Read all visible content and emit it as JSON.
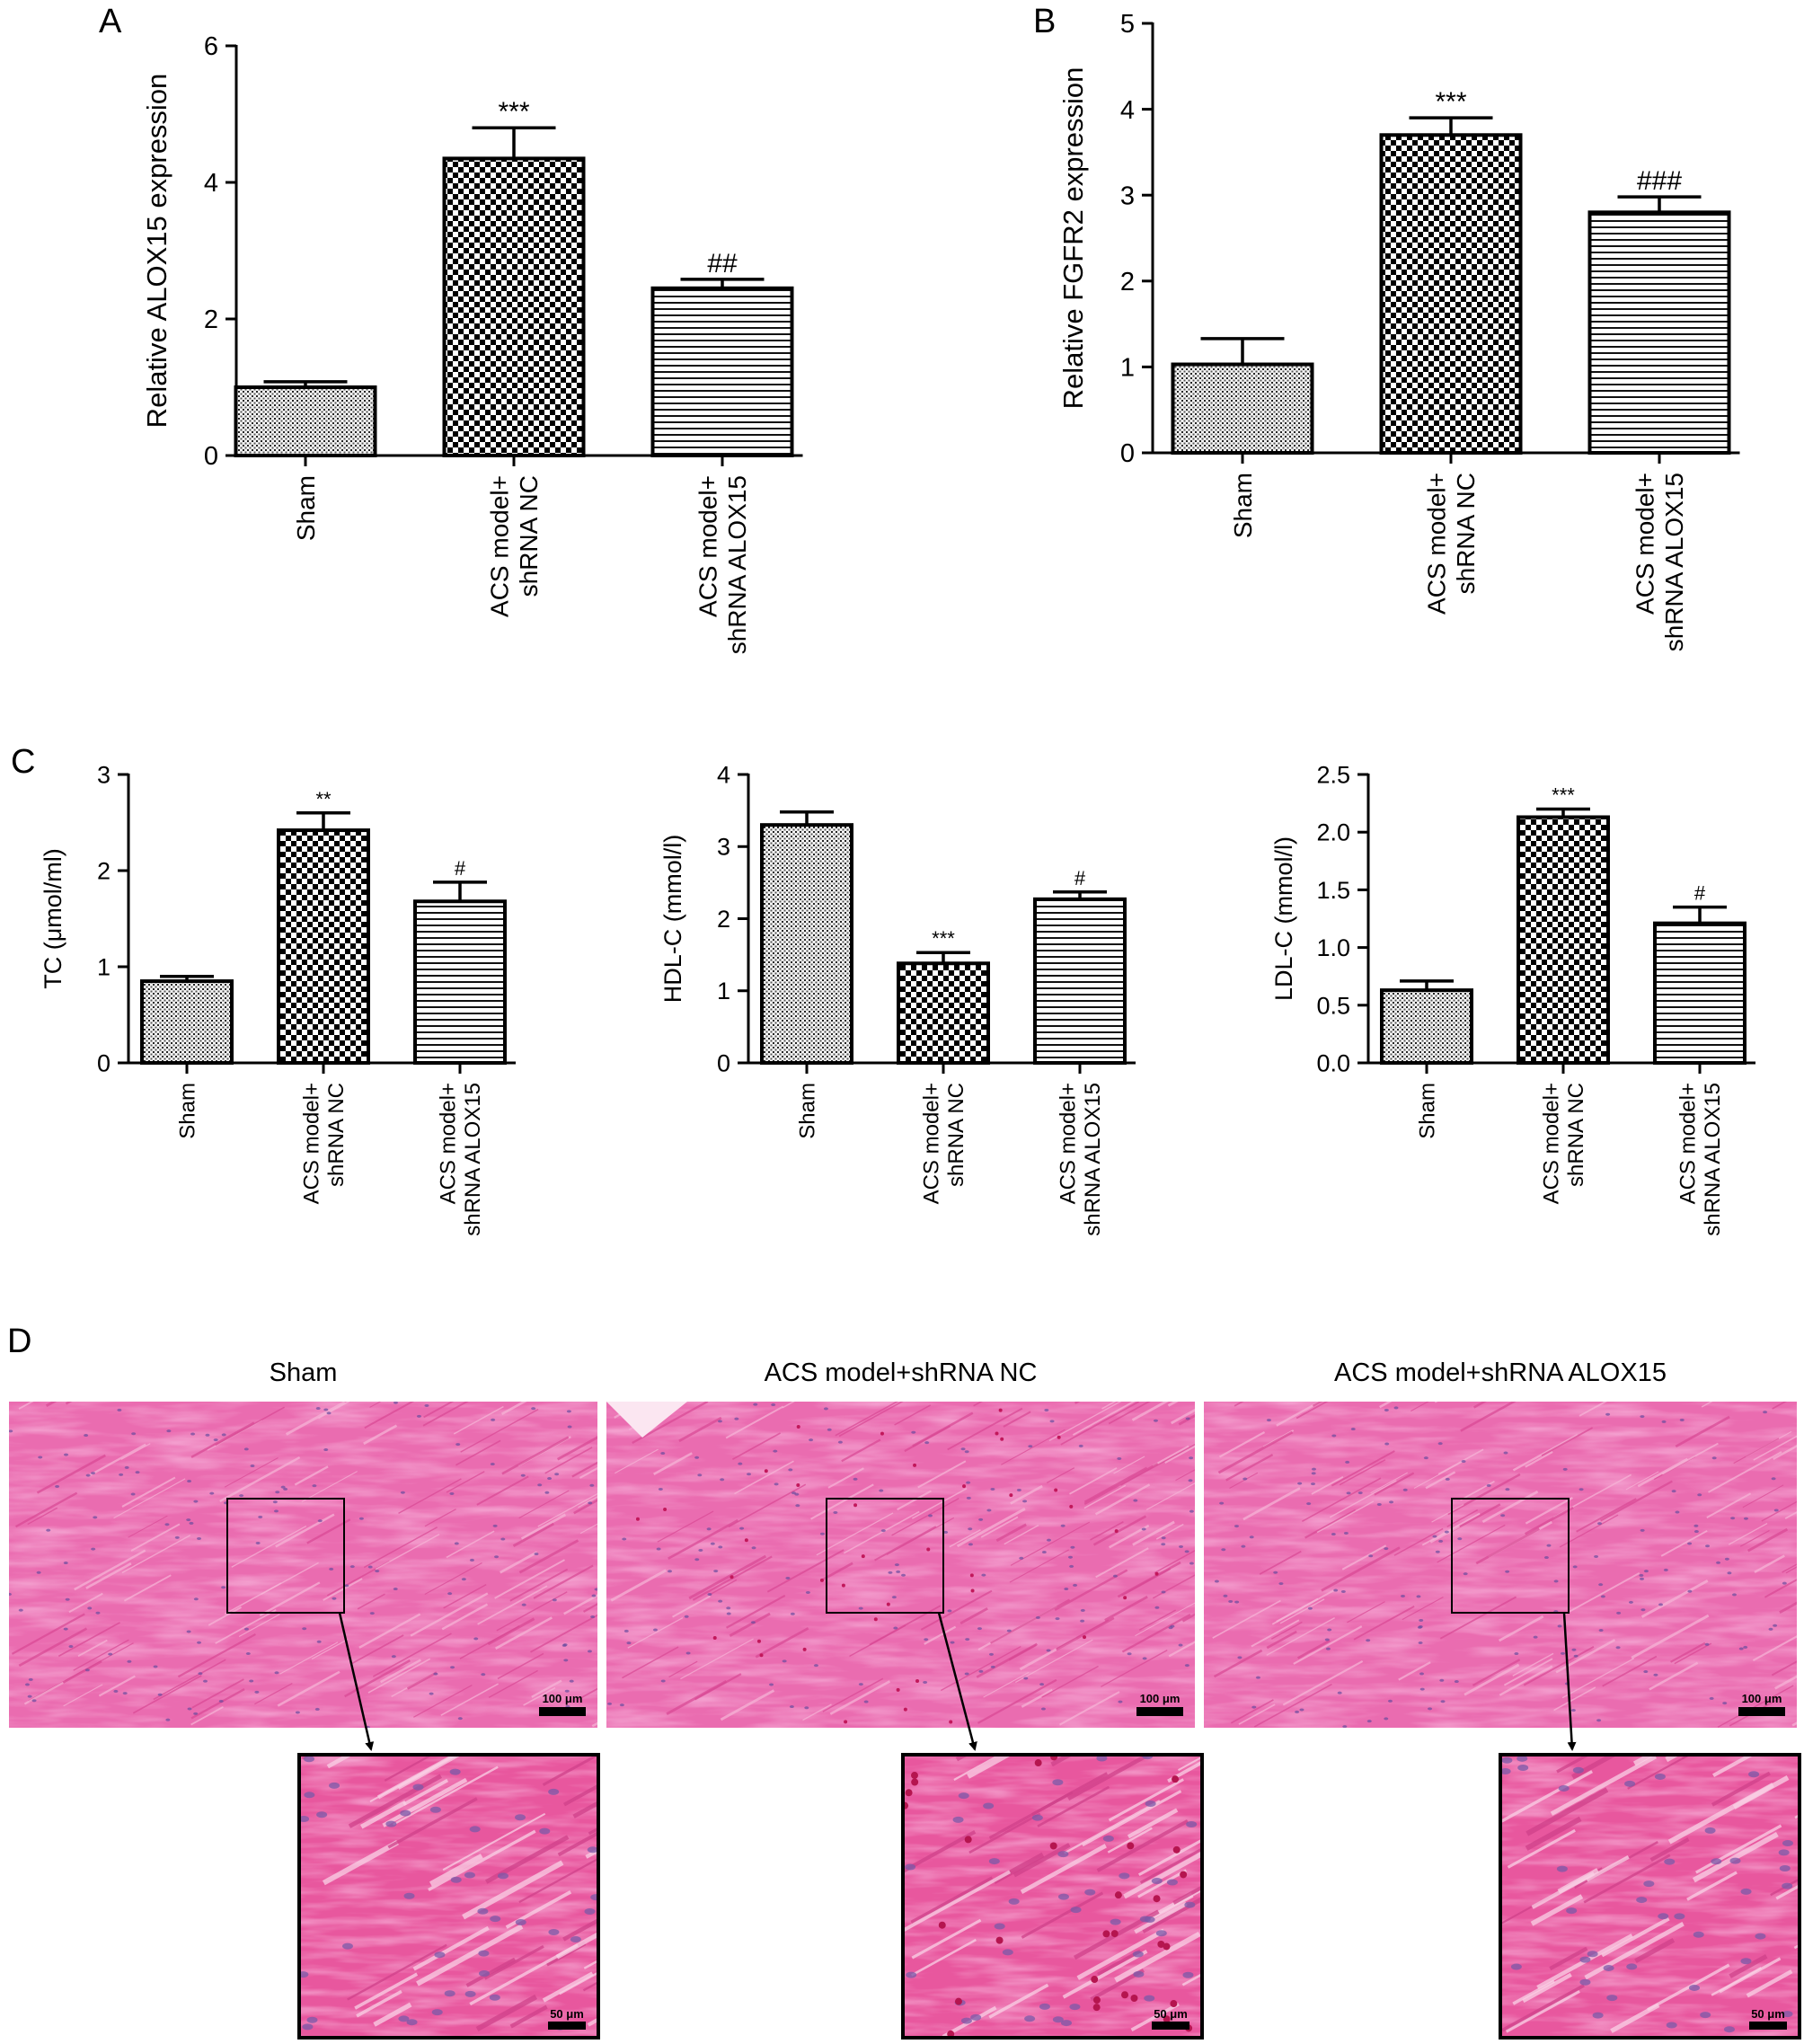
{
  "panels": [
    {
      "letter": "A"
    },
    {
      "letter": "B"
    },
    {
      "letter": "C"
    },
    {
      "letter": "D"
    }
  ],
  "colors": {
    "ink": "#000000",
    "tissue": "#e8579e",
    "tissue_light": "#f4a6cf",
    "nuclei": "#6a4b9e",
    "rbc": "#c2185b"
  },
  "chart_data": [
    {
      "panel": "A",
      "type": "bar",
      "categories": [
        "Sham",
        "ACS model+\nshRNA NC",
        "ACS model+\nshRNA ALOX15"
      ],
      "values": [
        1.0,
        4.35,
        2.45
      ],
      "errors": [
        0.08,
        0.45,
        0.13
      ],
      "significance": [
        "",
        "***",
        "##"
      ],
      "patterns": [
        "fine",
        "checker",
        "hlines"
      ],
      "ylabel": "Relative ALOX15 expression",
      "ylim": [
        0,
        6
      ],
      "yticks": [
        "0",
        "2",
        "4",
        "6"
      ]
    },
    {
      "panel": "B",
      "type": "bar",
      "categories": [
        "Sham",
        "ACS model+\nshRNA NC",
        "ACS model+\nshRNA ALOX15"
      ],
      "values": [
        1.03,
        3.7,
        2.8
      ],
      "errors": [
        0.3,
        0.2,
        0.18
      ],
      "significance": [
        "",
        "***",
        "###"
      ],
      "patterns": [
        "fine",
        "checker",
        "hlines"
      ],
      "ylabel": "Relative FGFR2 expression",
      "ylim": [
        0,
        5
      ],
      "yticks": [
        "0",
        "1",
        "2",
        "3",
        "4",
        "5"
      ]
    },
    {
      "panel": "C",
      "type": "bar",
      "categories": [
        "Sham",
        "ACS model+\nshRNA NC",
        "ACS model+\nshRNA ALOX15"
      ],
      "values": [
        0.85,
        2.42,
        1.68
      ],
      "errors": [
        0.05,
        0.18,
        0.2
      ],
      "significance": [
        "",
        "**",
        "#"
      ],
      "patterns": [
        "fine",
        "checker",
        "hlines"
      ],
      "ylabel": "TC (μmol/ml)",
      "ylim": [
        0,
        3
      ],
      "yticks": [
        "0",
        "1",
        "2",
        "3"
      ]
    },
    {
      "panel": "C",
      "type": "bar",
      "categories": [
        "Sham",
        "ACS model+\nshRNA NC",
        "ACS model+\nshRNA ALOX15"
      ],
      "values": [
        3.3,
        1.38,
        2.27
      ],
      "errors": [
        0.18,
        0.15,
        0.1
      ],
      "significance": [
        "",
        "***",
        "#"
      ],
      "patterns": [
        "fine",
        "checker",
        "hlines"
      ],
      "ylabel": "HDL-C (mmol/l)",
      "ylim": [
        0,
        4
      ],
      "yticks": [
        "0",
        "1",
        "2",
        "3",
        "4"
      ]
    },
    {
      "panel": "C",
      "type": "bar",
      "categories": [
        "Sham",
        "ACS model+\nshRNA NC",
        "ACS model+\nshRNA ALOX15"
      ],
      "values": [
        0.63,
        2.13,
        1.21
      ],
      "errors": [
        0.08,
        0.07,
        0.14
      ],
      "significance": [
        "",
        "***",
        "#"
      ],
      "patterns": [
        "fine",
        "checker",
        "hlines"
      ],
      "ylabel": "LDL-C (mmol/l)",
      "ylim": [
        0,
        2.5
      ],
      "yticks": [
        "0.0",
        "0.5",
        "1.0",
        "1.5",
        "2.0",
        "2.5"
      ]
    }
  ],
  "histology": {
    "panel": "D",
    "images": [
      {
        "title": "Sham",
        "scale_main": "100 μm",
        "scale_zoom": "50 μm",
        "seed": 11
      },
      {
        "title": "ACS model+shRNA NC",
        "scale_main": "100 μm",
        "scale_zoom": "50 μm",
        "seed": 29
      },
      {
        "title": "ACS model+shRNA ALOX15",
        "scale_main": "100 μm",
        "scale_zoom": "50 μm",
        "seed": 47
      }
    ]
  }
}
